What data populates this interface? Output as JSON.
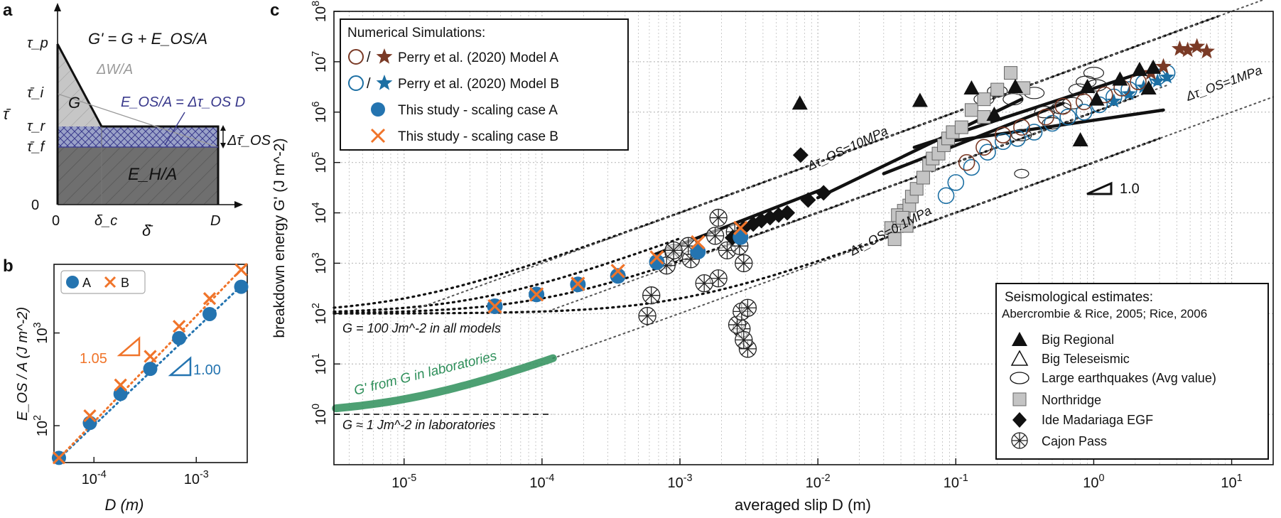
{
  "panel_labels": {
    "a": "a",
    "b": "b",
    "c": "c"
  },
  "colors": {
    "model_a": "#7a3a26",
    "model_b": "#1c6fa3",
    "case_a": "#2474b0",
    "case_b": "#f0742a",
    "lab_green": "#2e8f5a",
    "hatch_blue": "#3a3a8c",
    "dark_grey": "#6f6f6f",
    "light_grey": "#c4c4c4"
  },
  "panel_a": {
    "formula": "G' = G + E_OS/A",
    "dw_label": "ΔW/A",
    "g_label": "G",
    "eos_label": "E_OS/A = Δτ_OS D",
    "eh_label": "E_H/A",
    "y_symbol": "τ̄",
    "x_symbol": "δ̄",
    "y_ticks": [
      "τ_p",
      "τ̄_i",
      "τ_r",
      "τ̄_f",
      "0"
    ],
    "x_ticks": [
      "0",
      "δ_c",
      "D"
    ],
    "dtau_label": "Δτ̄_OS"
  },
  "chart_data": [
    {
      "type": "scatter",
      "panel": "b",
      "xlabel": "D (m)",
      "ylabel": "E_OS / A (J m^-2)",
      "log_x": true,
      "log_y": true,
      "xlim": [
        4.07e-05,
        0.00315
      ],
      "ylim": [
        40,
        5500
      ],
      "x_ticks": [
        0.0001,
        0.001
      ],
      "x_tick_labels": [
        "10^-4",
        "10^-3"
      ],
      "y_ticks": [
        100,
        1000
      ],
      "y_tick_labels": [
        "10^2",
        "10^3"
      ],
      "legend": [
        "A",
        "B"
      ],
      "legend_position": "top-left",
      "series": [
        {
          "name": "A",
          "x": [
            4.55e-05,
            9.12e-05,
            0.000182,
            0.000355,
            0.00068,
            0.00135,
            0.00275
          ],
          "y": [
            45,
            107,
            220,
            410,
            880,
            1600,
            3150
          ]
        },
        {
          "name": "B",
          "x": [
            4.55e-05,
            9.12e-05,
            0.000182,
            0.000355,
            0.00068,
            0.00135,
            0.00275
          ],
          "y": [
            45,
            128,
            275,
            560,
            1180,
            2350,
            4800
          ]
        }
      ],
      "slope_labels": [
        "1.05",
        "1.00"
      ]
    },
    {
      "type": "scatter",
      "panel": "c",
      "xlabel": "averaged slip D (m)",
      "ylabel": "breakdown energy G' (J m^-2)",
      "log_x": true,
      "log_y": true,
      "xlim": [
        3.1e-06,
        20
      ],
      "ylim": [
        0.1,
        100000000
      ],
      "x_ticks": [
        1e-05,
        0.0001,
        0.001,
        0.01,
        0.1,
        1,
        10
      ],
      "x_tick_labels": [
        "10^-5",
        "10^-4",
        "10^-3",
        "10^-2",
        "10^-1",
        "10^0",
        "10^1"
      ],
      "y_ticks": [
        1,
        10,
        100,
        1000,
        10000,
        100000,
        1000000,
        10000000,
        100000000
      ],
      "y_tick_labels": [
        "10^0",
        "10^1",
        "10^2",
        "10^3",
        "10^4",
        "10^5",
        "10^6",
        "10^7",
        "10^8"
      ],
      "grid": true,
      "legend_sim_title": "Numerical Simulations:",
      "legend_sim": [
        "Perry et al. (2020) Model A",
        "Perry et al. (2020) Model B",
        "This study - scaling case A",
        "This study - scaling case B"
      ],
      "legend_sim_position": "top-left",
      "legend_seis_title": "Seismological estimates:",
      "legend_seis_sub": "Abercrombie & Rice, 2005; Rice, 2006",
      "legend_seis": [
        "Big Regional",
        "Big Teleseismic",
        "Large earthquakes (Avg value)",
        "Northridge",
        "Ide Madariaga EGF",
        "Cajon Pass"
      ],
      "legend_seis_position": "bottom-right",
      "annotations": {
        "ref_10": "Δτ_OS=10MPa",
        "ref_1": "Δτ_OS=1MPa",
        "ref_01": "Δτ_OS=0.1MPa",
        "g100": "G = 100 Jm^-2 in all models",
        "g_lab": "G' from G in laboratories",
        "g1": "G ≈ 1 Jm^-2 in laboratories",
        "slope": "1.0"
      },
      "series": [
        {
          "name": "This study - scaling case A",
          "x": [
            4.55e-05,
            9.12e-05,
            0.000182,
            0.000355,
            0.00068,
            0.00135,
            0.00275
          ],
          "y": [
            140,
            240,
            380,
            560,
            1050,
            1700,
            3300
          ]
        },
        {
          "name": "This study - scaling case B",
          "x": [
            4.55e-05,
            9.12e-05,
            0.000182,
            0.000355,
            0.00068,
            0.00135,
            0.00275
          ],
          "y": [
            140,
            240,
            390,
            700,
            1300,
            2600,
            5000
          ]
        },
        {
          "name": "Big Regional",
          "x": [
            0.0074,
            0.055,
            0.13,
            0.19,
            0.27,
            0.8,
            0.9,
            1.05,
            1.55,
            2.15,
            2.5,
            2.7
          ],
          "y": [
            1500000,
            1700000,
            3000000,
            900000,
            3200000,
            280000,
            3200000,
            1800000,
            4500000,
            7000000,
            3000000,
            7700000
          ]
        },
        {
          "name": "Big Teleseismic",
          "x": [],
          "y": []
        },
        {
          "name": "Large earthquakes (Avg value)",
          "x": [
            0.16,
            0.2,
            0.26,
            0.37,
            0.44,
            0.58,
            0.78,
            0.88,
            1.0,
            1.05,
            0.3,
            0.5,
            0.7
          ],
          "y": [
            1800000,
            2600000,
            1800000,
            2400000,
            1000000,
            1200000,
            2800000,
            4000000,
            6000000,
            3400000,
            350000,
            600000,
            1500000
          ],
          "x_outlier": [
            0.3
          ],
          "y_outlier": [
            60000
          ]
        },
        {
          "name": "Northridge",
          "x": [
            0.034,
            0.039,
            0.042,
            0.044,
            0.036,
            0.038,
            0.046,
            0.048,
            0.052,
            0.041,
            0.058,
            0.064,
            0.068,
            0.075,
            0.082,
            0.088,
            0.095,
            0.11,
            0.13,
            0.16,
            0.2,
            0.25,
            0.31,
            0.16
          ],
          "y": [
            5000,
            7000,
            11000,
            5500,
            3000,
            9000,
            14000,
            21000,
            30000,
            8000,
            50000,
            90000,
            120000,
            150000,
            220000,
            300000,
            400000,
            500000,
            1100000,
            1800000,
            2800000,
            6000000,
            3000000,
            800000
          ]
        },
        {
          "name": "Ide Madariaga EGF",
          "x": [
            0.0024,
            0.0029,
            0.0034,
            0.0039,
            0.0045,
            0.0052,
            0.006,
            0.0085,
            0.011,
            0.0075
          ],
          "y": [
            3200,
            5000,
            6000,
            7000,
            8000,
            9000,
            10000,
            18000,
            25000,
            140000
          ]
        },
        {
          "name": "Cajon Pass",
          "x": [
            0.0009,
            0.0012,
            0.0019,
            0.0022,
            0.0025,
            0.0027,
            0.0029,
            0.0031,
            0.0028,
            0.0026,
            0.0015,
            0.00115,
            0.0009,
            0.0008,
            0.00062,
            0.00058,
            0.0028,
            0.0031,
            0.0018,
            0.0019,
            0.0029
          ],
          "y": [
            1600,
            1200,
            500,
            1800,
            4200,
            2200,
            1000,
            20,
            50,
            60,
            400,
            2200,
            1800,
            900,
            230,
            90,
            110,
            130,
            3500,
            8000,
            30
          ]
        },
        {
          "name": "Perry et al. (2020) Model A",
          "x": [
            0.12,
            0.16,
            0.22,
            0.3,
            0.45,
            0.6,
            0.85,
            1.2,
            1.6,
            2.1,
            2.6,
            3.2,
            4.2,
            4.8,
            5.6,
            6.6
          ],
          "y": [
            100000,
            200000,
            350000,
            500000,
            800000,
            1300000,
            1600000,
            2200000,
            3000000,
            4000000,
            6000000,
            8000000,
            18000000,
            17000000,
            20000000,
            16000000
          ]
        },
        {
          "name": "Perry et al. (2020) Model B",
          "x": [
            0.085,
            0.1,
            0.13,
            0.17,
            0.22,
            0.28,
            0.37,
            0.5,
            0.65,
            0.85,
            1.1,
            1.4,
            1.8,
            2.3,
            2.9,
            3.4
          ],
          "y": [
            22000,
            40000,
            80000,
            160000,
            260000,
            300000,
            400000,
            600000,
            800000,
            1000000,
            1400000,
            2000000,
            2800000,
            3800000,
            5000000,
            6000000
          ]
        }
      ]
    }
  ]
}
